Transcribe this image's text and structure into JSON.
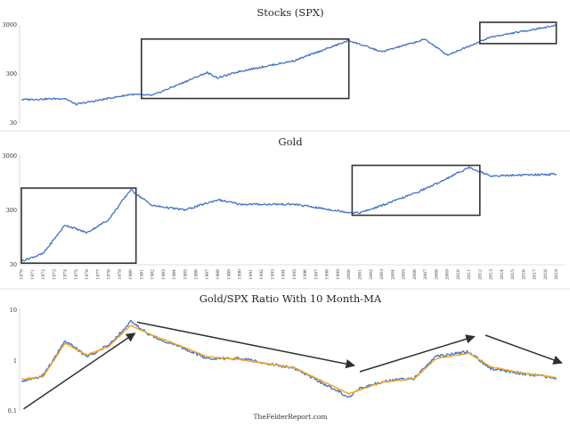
{
  "colors": {
    "series": "#4472C4",
    "moving_average": "#F5A623",
    "annotation": "#333333"
  },
  "footer": "TheFelderReport.com",
  "years": [
    "1970",
    "1971",
    "1972",
    "1973",
    "1974",
    "1975",
    "1976",
    "1977",
    "1978",
    "1979",
    "1980",
    "1981",
    "1982",
    "1983",
    "1984",
    "1985",
    "1986",
    "1987",
    "1988",
    "1989",
    "1990",
    "1991",
    "1992",
    "1993",
    "1994",
    "1995",
    "1996",
    "1997",
    "1998",
    "1999",
    "2000",
    "2001",
    "2002",
    "2003",
    "2004",
    "2005",
    "2006",
    "2007",
    "2008",
    "2009",
    "2010",
    "2011",
    "2012",
    "2013",
    "2014",
    "2015",
    "2016",
    "2017",
    "2018",
    "2019"
  ],
  "chart_data": [
    {
      "type": "line",
      "title": "Stocks (SPX)",
      "y_scale": "log",
      "ylim": [
        30,
        3000
      ],
      "yticks": [
        "3000",
        "300",
        "30"
      ],
      "x": [
        "1970",
        "1974",
        "1975",
        "1980",
        "1982",
        "1987",
        "1988",
        "1990",
        "1995",
        "2000",
        "2003",
        "2007",
        "2009",
        "2013",
        "2019"
      ],
      "values": [
        90,
        95,
        72,
        115,
        110,
        320,
        250,
        340,
        560,
        1450,
        850,
        1530,
        730,
        1700,
        2950
      ],
      "annotation_boxes": [
        {
          "x_start": 1981,
          "x_end": 2000,
          "y_low": 95,
          "y_high": 1550
        },
        {
          "x_start": 2012,
          "x_end": 2019,
          "y_low": 1250,
          "y_high": 3400
        }
      ]
    },
    {
      "type": "line",
      "title": "Gold",
      "y_scale": "log",
      "ylim": [
        30,
        3000
      ],
      "yticks": [
        "3000",
        "300",
        "30"
      ],
      "x": [
        "1970",
        "1972",
        "1974",
        "1976",
        "1978",
        "1980",
        "1982",
        "1985",
        "1988",
        "1990",
        "1995",
        "2000",
        "2001",
        "2003",
        "2006",
        "2008",
        "2011",
        "2013",
        "2019"
      ],
      "values": [
        35,
        48,
        160,
        115,
        200,
        700,
        360,
        300,
        460,
        380,
        380,
        270,
        265,
        360,
        600,
        900,
        1800,
        1250,
        1350
      ],
      "annotation_boxes": [
        {
          "x_start": 1970,
          "x_end": 1980.5,
          "y_low": 32,
          "y_high": 750
        },
        {
          "x_start": 2000.3,
          "x_end": 2012,
          "y_low": 240,
          "y_high": 1950
        }
      ]
    },
    {
      "type": "line",
      "title": "Gold/SPX Ratio With 10 Month-MA",
      "y_scale": "log",
      "ylim": [
        0.1,
        10
      ],
      "yticks": [
        "10",
        "1",
        "0.1"
      ],
      "x": [
        "1970",
        "1972",
        "1974",
        "1976",
        "1978",
        "1980",
        "1982",
        "1985",
        "1987",
        "1990",
        "1995",
        "2000",
        "2001",
        "2003",
        "2006",
        "2008",
        "2011",
        "2013",
        "2016",
        "2019"
      ],
      "series": [
        {
          "name": "Gold/SPX",
          "values": [
            0.4,
            0.5,
            2.5,
            1.2,
            2.0,
            6.0,
            3.0,
            1.7,
            1.1,
            1.1,
            0.7,
            0.19,
            0.28,
            0.38,
            0.45,
            1.2,
            1.5,
            0.7,
            0.55,
            0.45
          ]
        },
        {
          "name": "10 Month-MA",
          "values": [
            0.42,
            0.48,
            2.2,
            1.3,
            1.9,
            5.0,
            3.2,
            1.8,
            1.2,
            1.05,
            0.72,
            0.22,
            0.26,
            0.37,
            0.44,
            1.1,
            1.4,
            0.75,
            0.56,
            0.46
          ]
        }
      ],
      "trend_arrows": [
        {
          "x1": 1970.2,
          "y1": 0.11,
          "x2": 1980.4,
          "y2": 3.5
        },
        {
          "x1": 1980.6,
          "y1": 5.8,
          "x2": 2000.5,
          "y2": 0.8
        },
        {
          "x1": 2001,
          "y1": 0.6,
          "x2": 2011.5,
          "y2": 3.0
        },
        {
          "x1": 2012.5,
          "y1": 3.2,
          "x2": 2019.5,
          "y2": 0.9
        }
      ]
    }
  ]
}
